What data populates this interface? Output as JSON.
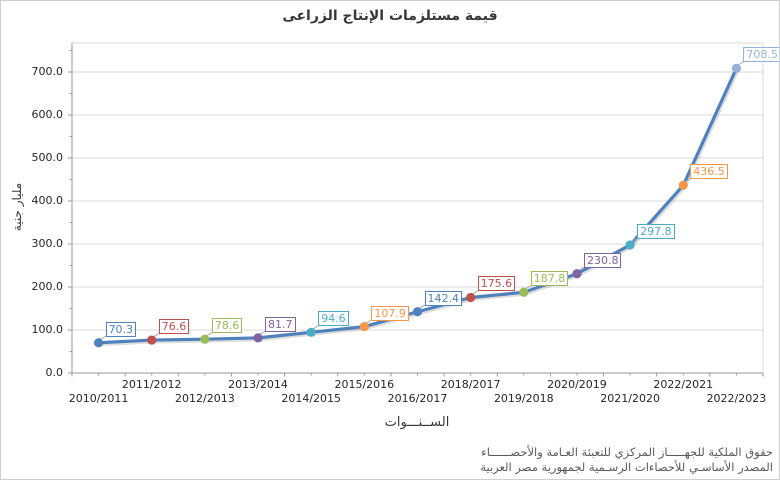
{
  "chart_data": {
    "type": "line",
    "title": "قيمة مستلزمات الإنتاج الزراعى",
    "xlabel": "الســنـــوات",
    "ylabel": "مليار جنية",
    "categories": [
      "2010/2011",
      "2011/2012",
      "2012/2013",
      "2013/2014",
      "2014/2015",
      "2015/2016",
      "2016/2017",
      "2018/2017",
      "2019/2018",
      "2020/2019",
      "2021/2020",
      "2022/2021",
      "2022/2023"
    ],
    "values": [
      70.3,
      76.6,
      78.6,
      81.7,
      94.6,
      107.9,
      142.4,
      175.6,
      187.8,
      230.8,
      297.8,
      436.5,
      708.5
    ],
    "point_labels": [
      "70.3",
      "76.6",
      "78.6",
      "81.7",
      "94.6",
      "107.9",
      "142.4",
      "175.6",
      "187.8",
      "230.8",
      "297.8",
      "436.5",
      "708.5"
    ],
    "point_colors": [
      "#4F81BD",
      "#C0504D",
      "#9BBB59",
      "#8064A2",
      "#4BACC6",
      "#F79646",
      "#4F81BD",
      "#C0504D",
      "#9BBB59",
      "#8064A2",
      "#4BACC6",
      "#F79646",
      "#95B3D7"
    ],
    "line_color": "#4F81BD",
    "grid_color": "#d9d9d9",
    "axis_color": "#9a9a9a",
    "leader_color": "#ababab",
    "ylim": [
      0,
      770
    ],
    "y_major_unit": 100,
    "y_minor_unit": 50,
    "y_tick_labels": [
      "0.0",
      "100.0",
      "200.0",
      "300.0",
      "400.0",
      "500.0",
      "600.0",
      "700.0"
    ],
    "grid": "horizontal",
    "legend": "none"
  },
  "footer": {
    "line1": "حقوق الملكية للجهـــــاز المركزي للتعبئة العـامة والأحصــــــاء",
    "line2": "المصدر الأساسـي للأحصاءات الرسـمية لجمهورية مصر العربية"
  }
}
